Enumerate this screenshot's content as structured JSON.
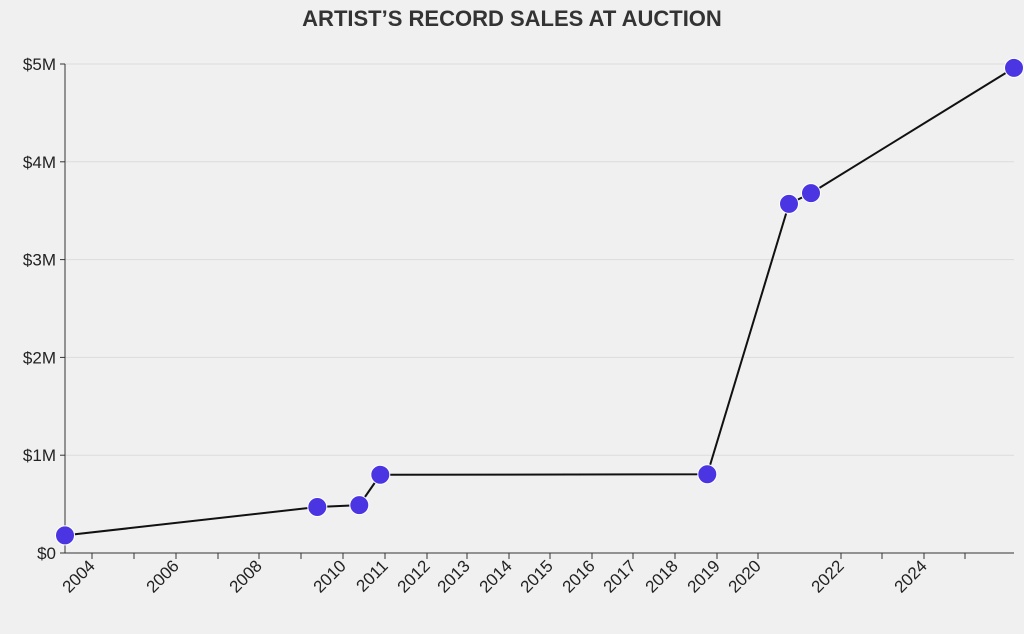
{
  "chart_data": {
    "type": "line",
    "title": "ARTIST’S RECORD SALES AT AUCTION",
    "xlabel": "",
    "ylabel": "",
    "x_ticks": [
      "2004",
      "2006",
      "2008",
      "2010",
      "2011",
      "2012",
      "2013",
      "2014",
      "2015",
      "2016",
      "2017",
      "2018",
      "2019",
      "2020",
      "2022",
      "2024"
    ],
    "y_ticks": [
      "$0",
      "$1M",
      "$2M",
      "$3M",
      "$4M",
      "$5M"
    ],
    "ylim": [
      0,
      5000000
    ],
    "grid": true,
    "colors": {
      "point": "#4b35e3",
      "line": "#111111"
    },
    "series": [
      {
        "points": [
          {
            "x": "2003-06",
            "y": 180000
          },
          {
            "x": "2009-09",
            "y": 470000
          },
          {
            "x": "2010-09",
            "y": 490000
          },
          {
            "x": "2011-03",
            "y": 800000
          },
          {
            "x": "2019-02",
            "y": 805000
          },
          {
            "x": "2021-01",
            "y": 3570000
          },
          {
            "x": "2021-07",
            "y": 3680000
          },
          {
            "x": "2026-04",
            "y": 4960000
          }
        ]
      }
    ]
  }
}
